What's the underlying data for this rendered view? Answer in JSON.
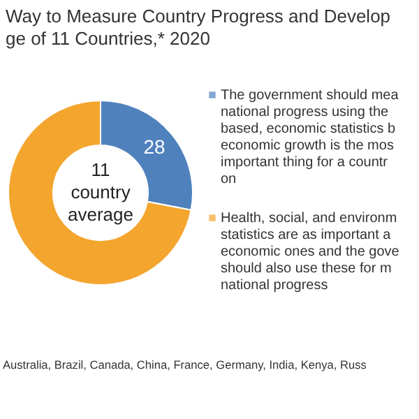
{
  "chart_data": {
    "type": "donut",
    "title": "Way to Measure Country Progress and Develop",
    "subtitle": "ge of 11 Countries,* 2020",
    "categories": [
      "The government should mea national progress using the based, economic statistics b economic growth is the mos important thing for a countr on",
      "Health, social, and environm statistics are as important a economic ones and the gove should also use these for m national progress"
    ],
    "values": [
      28,
      72
    ],
    "colors": [
      "#4f81bd",
      "#f4a52e"
    ],
    "value_labels": [
      "28",
      null
    ],
    "legend": "right",
    "annotations": [
      "11 country average",
      "Australia, Brazil, Canada, China, France, Germany, India, Kenya, Russ"
    ]
  }
}
